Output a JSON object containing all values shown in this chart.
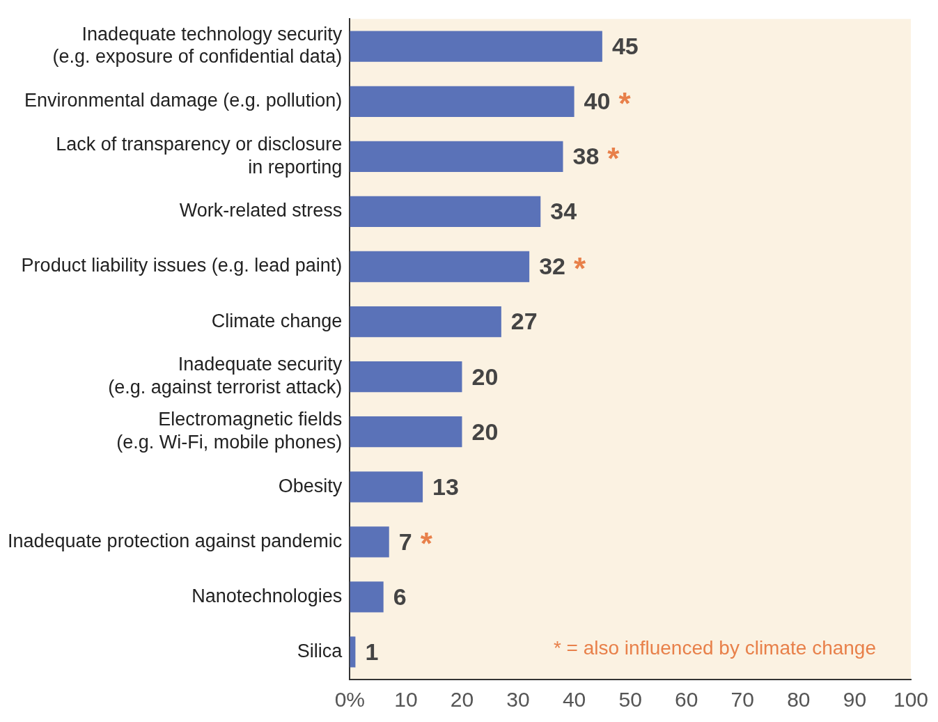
{
  "chart_data": {
    "type": "bar",
    "orientation": "horizontal",
    "categories": [
      "Inadequate technology security (e.g. exposure of confidential data)",
      "Environmental damage (e.g. pollution)",
      "Lack of transparency or disclosure in reporting",
      "Work-related stress",
      "Product liability issues (e.g. lead paint)",
      "Climate change",
      "Inadequate security (e.g. against terrorist attack)",
      "Electromagnetic fields (e.g. Wi-Fi, mobile phones)",
      "Obesity",
      "Inadequate protection against pandemic",
      "Nanotechnologies",
      "Silica"
    ],
    "values": [
      45,
      40,
      38,
      34,
      32,
      27,
      20,
      20,
      13,
      7,
      6,
      1
    ],
    "color": "#5a72b8",
    "data_labels": true,
    "xlim": [
      0,
      100
    ],
    "xticks": [
      {
        "value": 0,
        "label": "0%"
      },
      10,
      20,
      30,
      40,
      50,
      60,
      70,
      80,
      90,
      100
    ],
    "grid": false,
    "legend": false,
    "annotations": [
      {
        "text": "*",
        "x": 40,
        "y": "Environmental damage (e.g. pollution)"
      },
      {
        "text": "*",
        "x": 38,
        "y": "Lack of transparency or disclosure in reporting"
      },
      {
        "text": "*",
        "x": 32,
        "y": "Product liability issues (e.g. lead paint)"
      },
      {
        "text": "*",
        "x": 7,
        "y": "Inadequate protection against pandemic"
      },
      "* = also influenced by climate change"
    ]
  }
}
